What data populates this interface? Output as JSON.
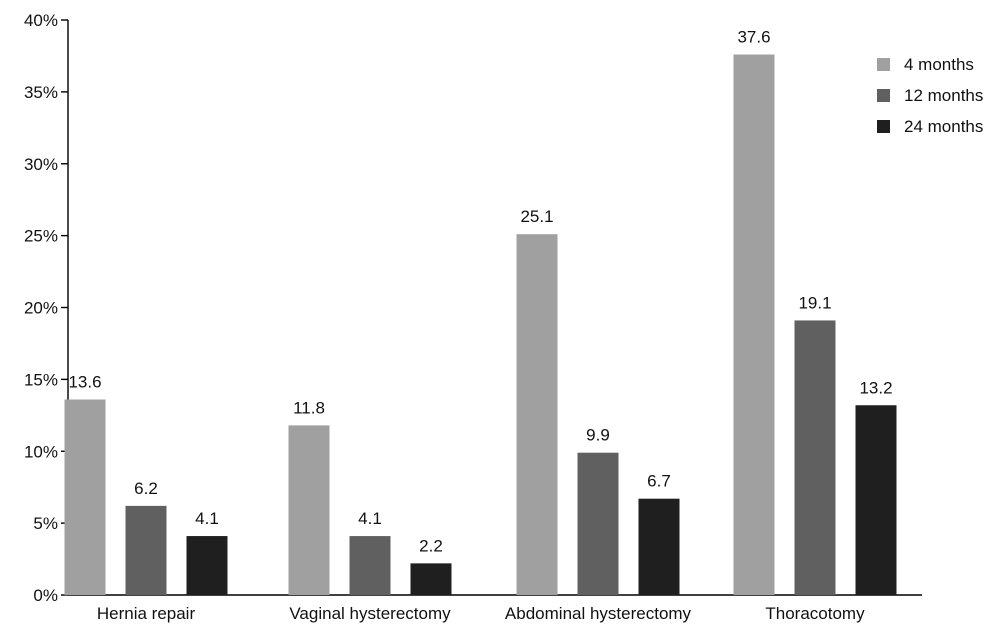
{
  "chart_data": {
    "type": "bar",
    "title": "",
    "xlabel": "",
    "ylabel": "",
    "categories": [
      "Hernia repair",
      "Vaginal hysterectomy",
      "Abdominal hysterectomy",
      "Thoracotomy"
    ],
    "series": [
      {
        "name": "4 months",
        "color": "#a0a0a0",
        "values": [
          13.6,
          11.8,
          25.1,
          37.6
        ],
        "labels": [
          "13.6",
          "11.8",
          "25.1",
          "37.6"
        ]
      },
      {
        "name": "12 months",
        "color": "#606060",
        "values": [
          6.2,
          4.1,
          9.9,
          19.1
        ],
        "labels": [
          "6.2",
          "4.1",
          "9.9",
          "19.1"
        ]
      },
      {
        "name": "24 months",
        "color": "#1f1f1f",
        "values": [
          4.1,
          2.2,
          6.7,
          13.2
        ],
        "labels": [
          "4.1",
          "2.2",
          "6.7",
          "13.2"
        ]
      }
    ],
    "ylim": [
      0,
      40
    ],
    "yticks": [
      0,
      5,
      10,
      15,
      20,
      25,
      30,
      35,
      40
    ],
    "ytick_labels": [
      "0%",
      "5%",
      "10%",
      "15%",
      "20%",
      "25%",
      "30%",
      "35%",
      "40%"
    ],
    "grid": false,
    "legend_position": "top-right"
  }
}
